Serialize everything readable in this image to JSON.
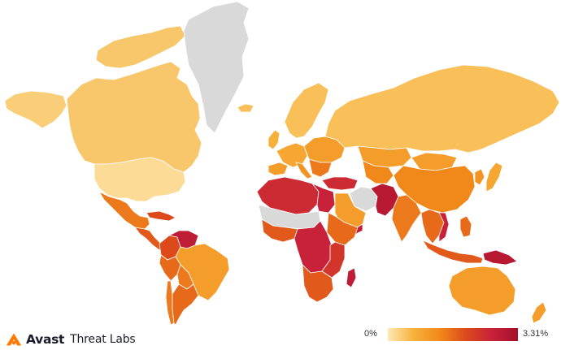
{
  "brand": {
    "logo_icon": "avast-logo-icon",
    "name": "Avast",
    "subtitle": "Threat Labs"
  },
  "legend": {
    "min_label": "0%",
    "max_label": "3.31%",
    "min_value": 0,
    "max_value": 3.31,
    "colors": [
      "#fde9b5",
      "#f7b13a",
      "#f1891a",
      "#dc4a1c",
      "#c8213a",
      "#a5102a"
    ]
  },
  "map": {
    "no_data_color": "#d9d9d9",
    "ocean_color": "#ffffff",
    "regions": [
      {
        "name": "greenland",
        "level": null
      },
      {
        "name": "canada",
        "level": 0.12
      },
      {
        "name": "alaska",
        "level": 0.1
      },
      {
        "name": "united-states",
        "level": 0.05
      },
      {
        "name": "mexico",
        "level": 0.45
      },
      {
        "name": "central-america",
        "level": 0.55
      },
      {
        "name": "caribbean",
        "level": 0.6
      },
      {
        "name": "venezuela",
        "level": 0.85
      },
      {
        "name": "colombia",
        "level": 0.6
      },
      {
        "name": "brazil",
        "level": 0.3
      },
      {
        "name": "peru",
        "level": 0.5
      },
      {
        "name": "bolivia",
        "level": 0.45
      },
      {
        "name": "argentina",
        "level": 0.5
      },
      {
        "name": "chile",
        "level": 0.45
      },
      {
        "name": "iceland",
        "level": 0.15
      },
      {
        "name": "scandinavia",
        "level": 0.15
      },
      {
        "name": "united-kingdom",
        "level": 0.2
      },
      {
        "name": "western-europe",
        "level": 0.25
      },
      {
        "name": "eastern-europe",
        "level": 0.3
      },
      {
        "name": "spain",
        "level": 0.3
      },
      {
        "name": "italy",
        "level": 0.35
      },
      {
        "name": "balkans",
        "level": 0.45
      },
      {
        "name": "turkey",
        "level": 0.75
      },
      {
        "name": "russia",
        "level": 0.15
      },
      {
        "name": "kazakhstan",
        "level": 0.3
      },
      {
        "name": "central-asia",
        "level": 0.4
      },
      {
        "name": "mongolia",
        "level": 0.3
      },
      {
        "name": "china",
        "level": 0.4
      },
      {
        "name": "korea",
        "level": 0.35
      },
      {
        "name": "japan",
        "level": 0.25
      },
      {
        "name": "iran",
        "level": null
      },
      {
        "name": "afghanistan-pakistan",
        "level": 0.9
      },
      {
        "name": "india",
        "level": 0.45
      },
      {
        "name": "southeast-asia",
        "level": 0.5
      },
      {
        "name": "vietnam-cambodia",
        "level": 0.8
      },
      {
        "name": "arabian-peninsula",
        "level": 0.3
      },
      {
        "name": "yemen",
        "level": 0.85
      },
      {
        "name": "north-africa",
        "level": 0.75
      },
      {
        "name": "egypt",
        "level": 0.8
      },
      {
        "name": "sahel",
        "level": null
      },
      {
        "name": "west-africa",
        "level": 0.55
      },
      {
        "name": "horn-of-africa",
        "level": 0.5
      },
      {
        "name": "central-africa",
        "level": 0.8
      },
      {
        "name": "east-africa",
        "level": 0.7
      },
      {
        "name": "southern-africa",
        "level": 0.55
      },
      {
        "name": "madagascar",
        "level": 0.85
      },
      {
        "name": "indonesia",
        "level": 0.55
      },
      {
        "name": "philippines",
        "level": 0.5
      },
      {
        "name": "papua-new-guinea",
        "level": 0.9
      },
      {
        "name": "australia",
        "level": 0.3
      },
      {
        "name": "new-zealand",
        "level": 0.3
      }
    ]
  }
}
